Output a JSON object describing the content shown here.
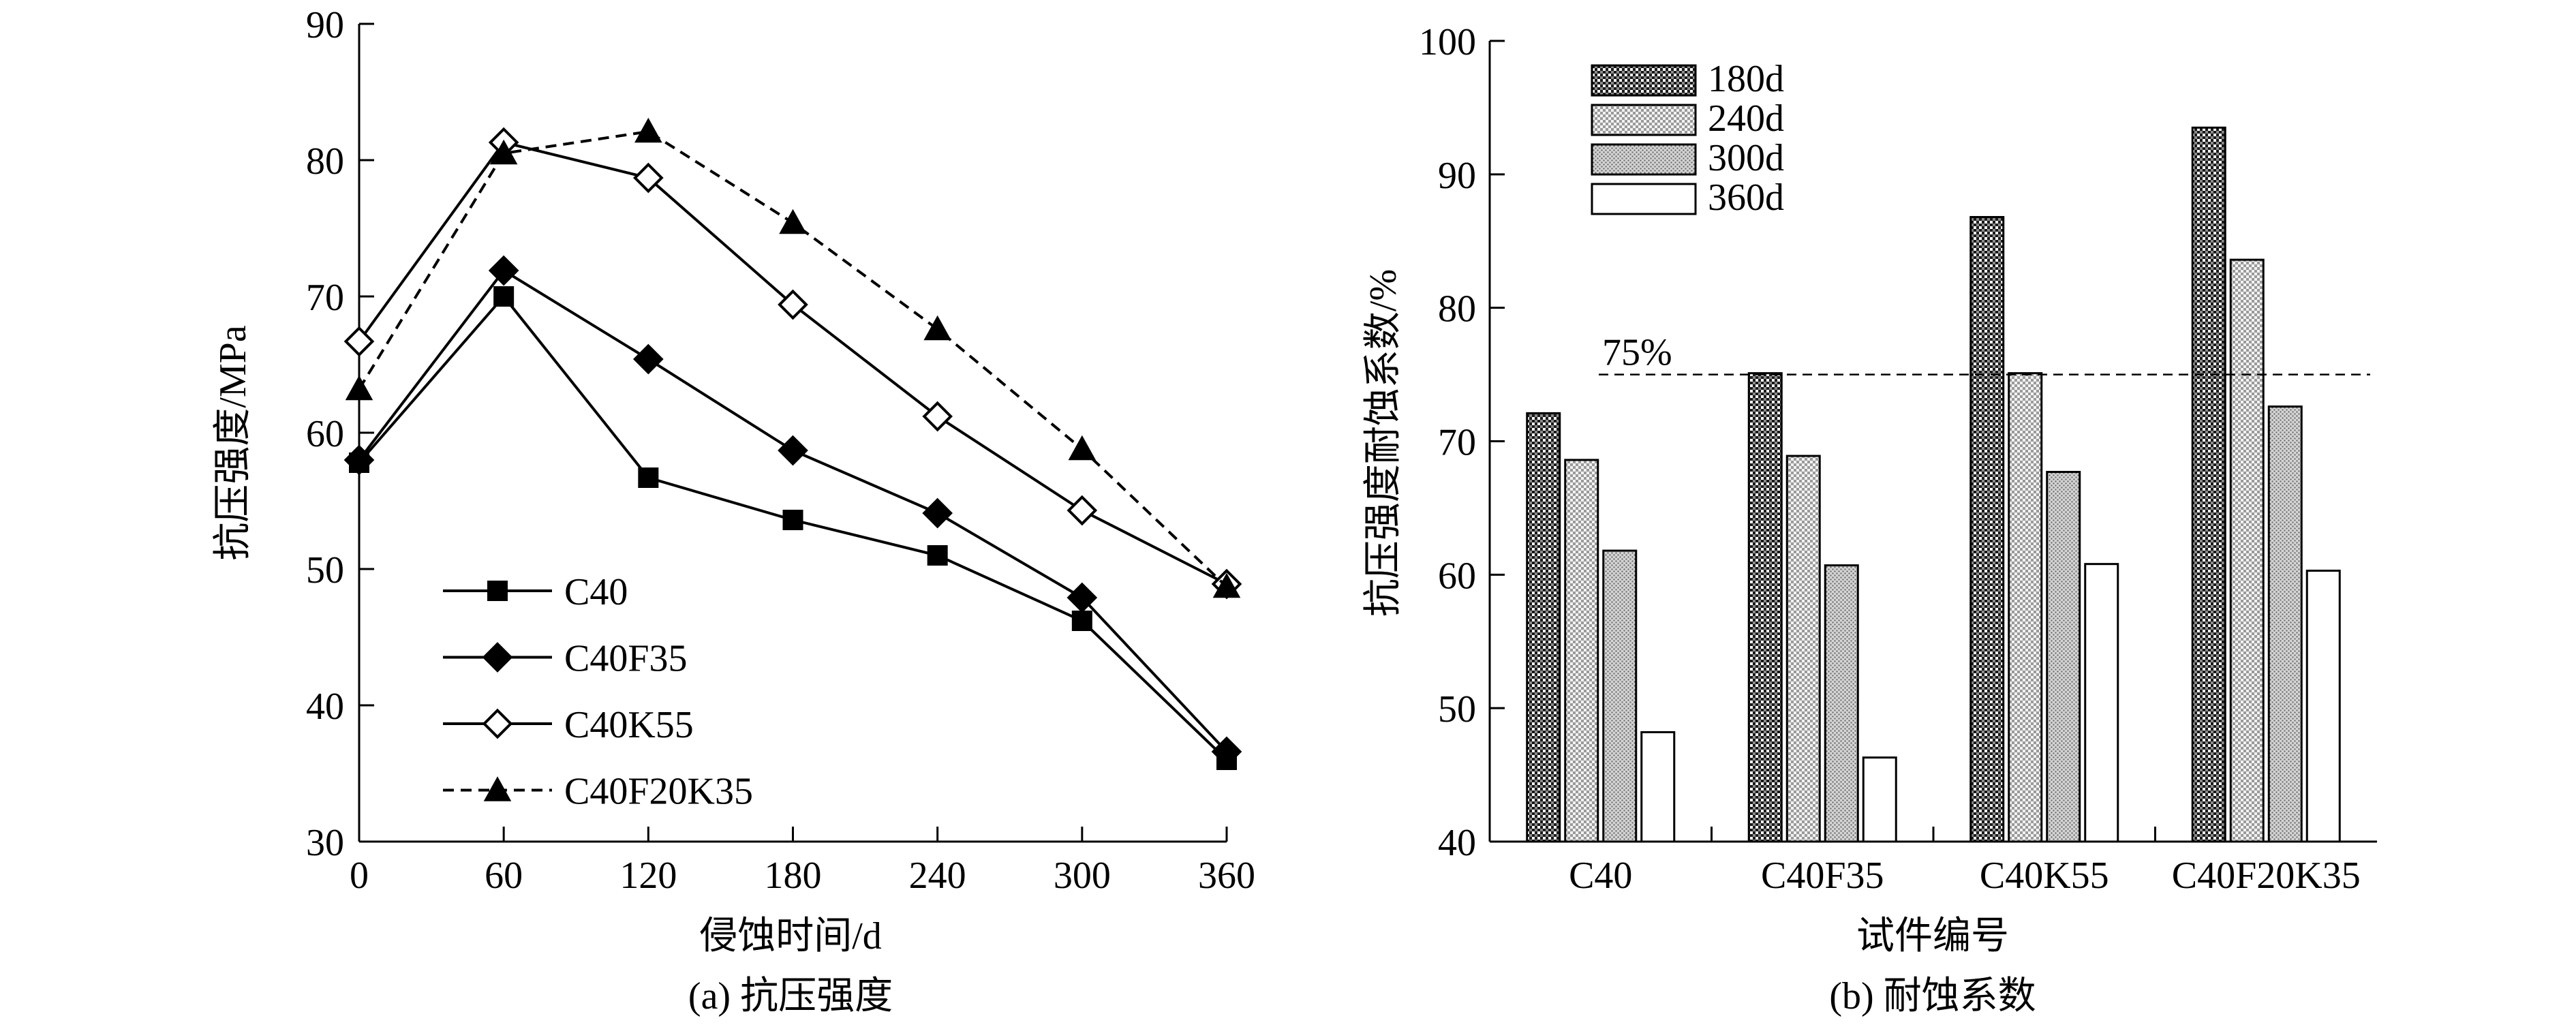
{
  "figure": {
    "left_caption": "(a) 抗压强度",
    "right_caption": "(b) 耐蚀系数"
  },
  "chart_data": [
    {
      "type": "line",
      "title": "",
      "caption": "(a) 抗压强度",
      "xlabel": "侵蚀时间/d",
      "ylabel": "抗压强度/MPa",
      "x": [
        0,
        60,
        120,
        180,
        240,
        300,
        360
      ],
      "xticks": [
        0,
        60,
        120,
        180,
        240,
        300,
        360
      ],
      "xlim": [
        0,
        360
      ],
      "yticks": [
        30,
        40,
        50,
        60,
        70,
        80,
        90
      ],
      "ylim": [
        30,
        90
      ],
      "grid": false,
      "legend_position": "bottom-left",
      "series": [
        {
          "name": "C40",
          "marker": "square-filled",
          "line": "solid",
          "values": [
            57.8,
            70.0,
            56.7,
            53.6,
            51.0,
            46.2,
            36.0
          ]
        },
        {
          "name": "C40F35",
          "marker": "diamond-filled",
          "line": "solid",
          "values": [
            58.0,
            71.9,
            65.4,
            58.7,
            54.1,
            47.9,
            36.6
          ]
        },
        {
          "name": "C40K55",
          "marker": "diamond-open",
          "line": "solid",
          "values": [
            66.7,
            81.3,
            78.7,
            69.4,
            61.2,
            54.3,
            48.9
          ]
        },
        {
          "name": "C40F20K35",
          "marker": "triangle-filled",
          "line": "dashed",
          "values": [
            63.2,
            80.5,
            82.1,
            75.4,
            67.6,
            58.8,
            48.7
          ]
        }
      ]
    },
    {
      "type": "bar",
      "title": "",
      "caption": "(b) 耐蚀系数",
      "xlabel": "试件编号",
      "ylabel": "抗压强度耐蚀系数/%",
      "categories": [
        "C40",
        "C40F35",
        "C40K55",
        "C40F20K35"
      ],
      "yticks": [
        40,
        50,
        60,
        70,
        80,
        90,
        100
      ],
      "ylim": [
        40,
        100
      ],
      "grid": false,
      "legend_position": "top-left",
      "reference_line": {
        "value": 75,
        "label": "75%",
        "style": "dashed"
      },
      "series": [
        {
          "name": "180d",
          "pattern": "dark-checker",
          "values": [
            72.1,
            75.1,
            86.8,
            93.5
          ]
        },
        {
          "name": "240d",
          "pattern": "light-checker",
          "values": [
            68.6,
            68.9,
            75.1,
            83.6
          ]
        },
        {
          "name": "300d",
          "pattern": "dots",
          "values": [
            61.8,
            60.7,
            67.7,
            72.6
          ]
        },
        {
          "name": "360d",
          "pattern": "white",
          "values": [
            48.2,
            46.3,
            60.8,
            60.3
          ]
        }
      ]
    }
  ]
}
